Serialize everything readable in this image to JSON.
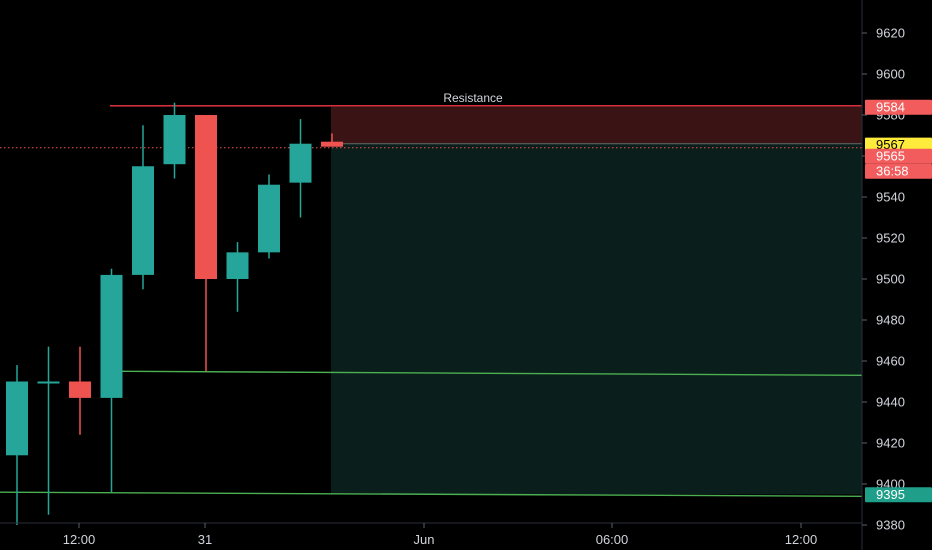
{
  "chart_data": {
    "type": "candlestick",
    "y_axis": {
      "ylim": [
        9378,
        9638
      ],
      "ticks": [
        9380,
        9400,
        9420,
        9440,
        9460,
        9480,
        9500,
        9520,
        9540,
        9560,
        9580,
        9600,
        9620
      ]
    },
    "x_axis": {
      "labels": [
        "12:00",
        "31",
        "Jun",
        "06:00",
        "12:00"
      ]
    },
    "candles": [
      {
        "o": 9414,
        "h": 9458,
        "l": 9380,
        "c": 9450
      },
      {
        "o": 9450,
        "h": 9467,
        "l": 9385,
        "c": 9450
      },
      {
        "o": 9450,
        "h": 9467,
        "l": 9424,
        "c": 9442
      },
      {
        "o": 9442,
        "h": 9505,
        "l": 9396,
        "c": 9502
      },
      {
        "o": 9502,
        "h": 9575,
        "l": 9495,
        "c": 9555
      },
      {
        "o": 9556,
        "h": 9586,
        "l": 9549,
        "c": 9580
      },
      {
        "o": 9580,
        "h": 9580,
        "l": 9455,
        "c": 9500
      },
      {
        "o": 9500,
        "h": 9518,
        "l": 9484,
        "c": 9513
      },
      {
        "o": 9513,
        "h": 9551,
        "l": 9510,
        "c": 9546
      },
      {
        "o": 9547,
        "h": 9578,
        "l": 9530,
        "c": 9566
      },
      {
        "o": 9566,
        "h": 9571,
        "l": 9565,
        "c": 9565
      }
    ],
    "annotations": {
      "resistance": {
        "label": "Resistance",
        "price": 9584
      },
      "support_upper": {
        "from_price": 9455,
        "to_price": 9453
      },
      "support_lower": {
        "from_price": 9396,
        "to_price": 9394
      },
      "position": {
        "entry": 9566,
        "stop": 9584,
        "target": 9395
      }
    },
    "price_tags": [
      {
        "text": "9584",
        "price": 9584,
        "bg": "#f25c5c",
        "fg": "#ffffff"
      },
      {
        "text": "9567",
        "price": 9567,
        "bg": "#ffeb3b",
        "fg": "#000000"
      },
      {
        "text": "9565",
        "price": 9565,
        "bg": "#f25c5c",
        "fg": "#ffffff"
      },
      {
        "text": "36:58",
        "price": 9565,
        "bg": "#f25c5c",
        "fg": "#ffffff",
        "below": true
      },
      {
        "text": "9395",
        "price": 9395,
        "bg": "#1f9e89",
        "fg": "#ffffff"
      }
    ]
  },
  "colors": {
    "background": "#000000",
    "up": "#26a69a",
    "down": "#ef5350",
    "resistance": "#f23645",
    "support": "#4caf50",
    "axis_text": "#d1d4dc",
    "stop_zone": "#3a1414",
    "target_zone": "#0a1e1c"
  }
}
